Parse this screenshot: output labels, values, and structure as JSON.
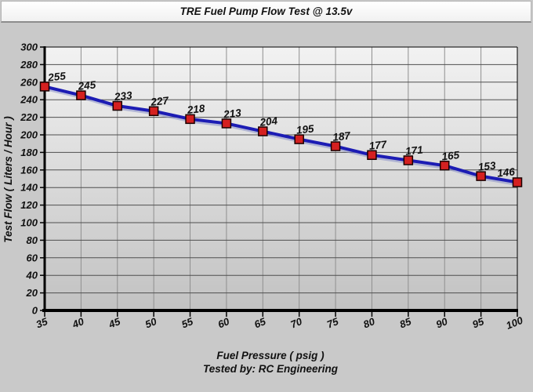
{
  "header": {
    "title": "TRE Fuel Pump Flow Test @ 13.5v"
  },
  "chart_data": {
    "type": "line",
    "title": "TRE Fuel Pump Flow Test @ 13.5v",
    "x": [
      35,
      40,
      45,
      50,
      55,
      60,
      65,
      70,
      75,
      80,
      85,
      90,
      95,
      100
    ],
    "series": [
      {
        "name": "Test Flow",
        "values": [
          255,
          245,
          233,
          227,
          218,
          213,
          204,
          195,
          187,
          177,
          171,
          165,
          153,
          146
        ]
      }
    ],
    "point_labels": [
      "255",
      "245",
      "233",
      "227",
      "218",
      "213",
      "204",
      "195",
      "187",
      "177",
      "171",
      "165",
      "153",
      "146"
    ],
    "xlabel": "Fuel Pressure ( psig )",
    "ylabel": "Test Flow ( Liters / Hour )",
    "footer": "Tested by: RC Engineering",
    "xlim": [
      35,
      100
    ],
    "ylim": [
      0,
      300
    ],
    "x_ticks": [
      35,
      40,
      45,
      50,
      55,
      60,
      65,
      70,
      75,
      80,
      85,
      90,
      95,
      100
    ],
    "y_ticks": [
      0,
      20,
      40,
      60,
      80,
      100,
      120,
      140,
      160,
      180,
      200,
      220,
      240,
      260,
      280,
      300
    ],
    "grid": true,
    "legend_position": "none",
    "colors": {
      "page_bg": "#c9c9c9",
      "plot_bg_top": "#f2f2f2",
      "plot_bg_bottom": "#c2c2c2",
      "h_grid": "#4f4f4f",
      "v_grid": "#8f8f8f",
      "axis": "#000000",
      "line": "#1c1cb4",
      "line_shadow": "#8890c8",
      "marker_fill": "#d42020",
      "marker_stroke": "#1a0000",
      "text": "#111111"
    }
  }
}
